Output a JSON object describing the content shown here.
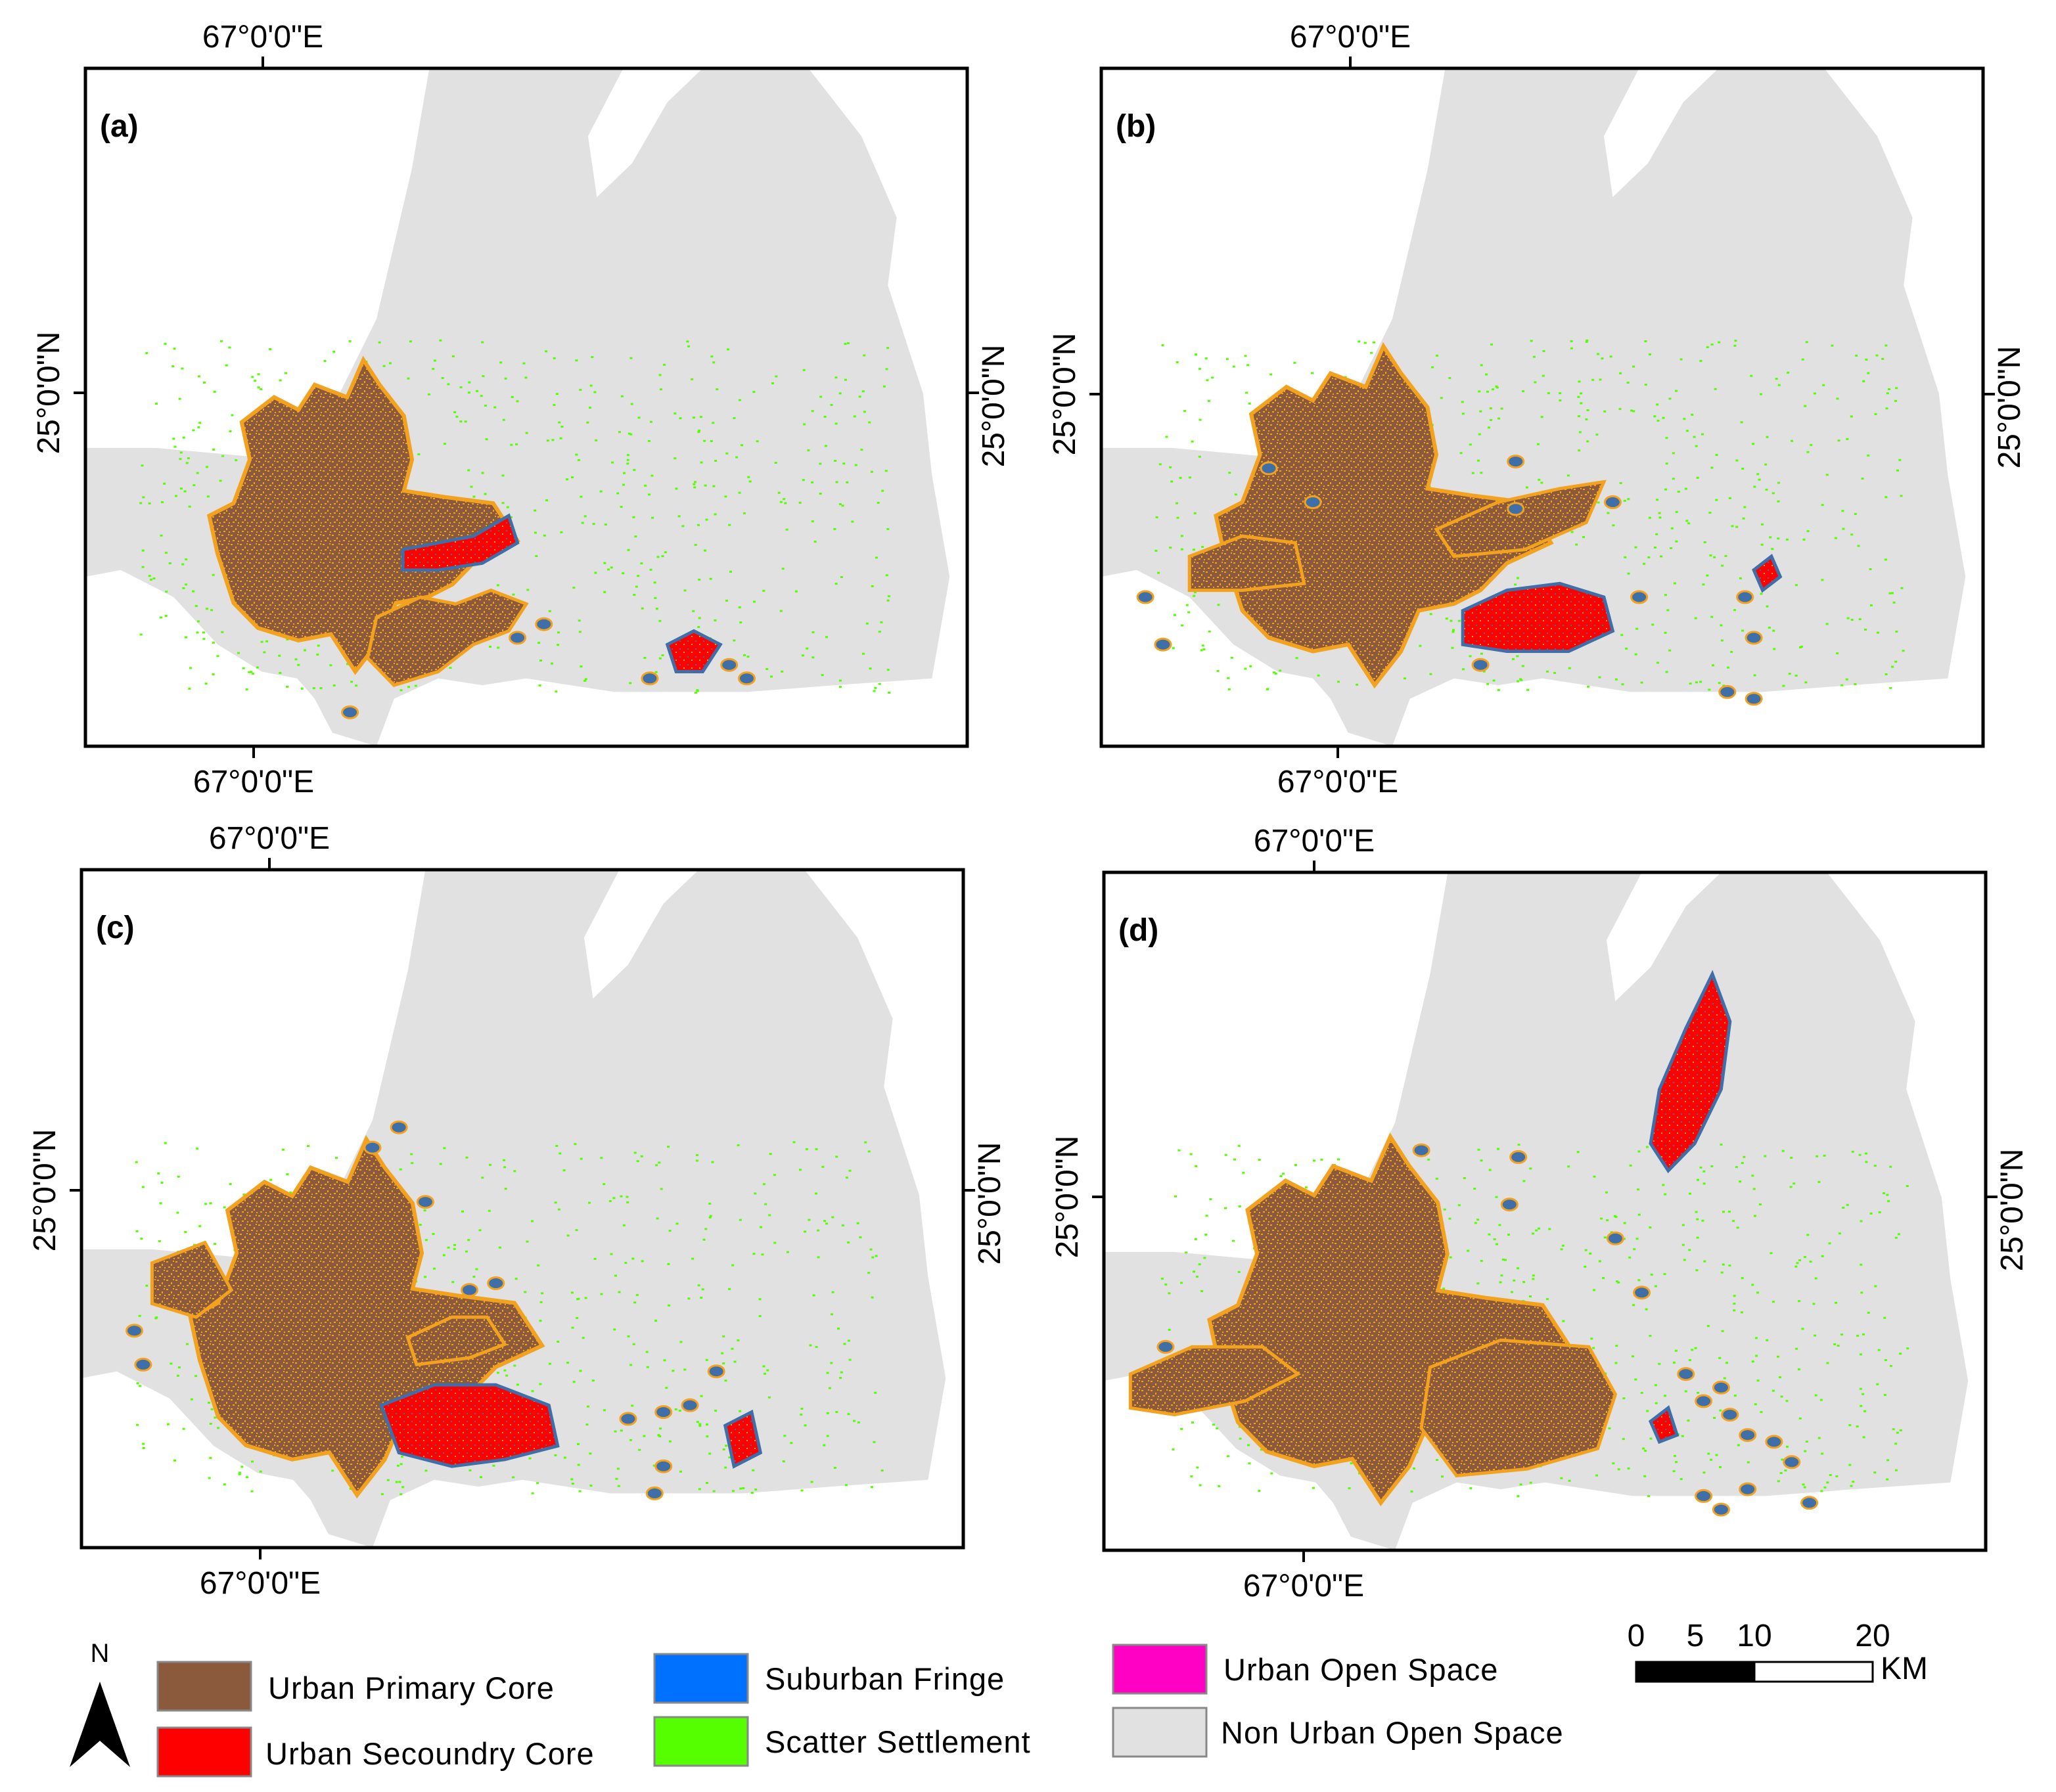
{
  "panels": [
    {
      "id": "a",
      "label": "(a)",
      "lon_top": "67°0'0\"E",
      "lon_bottom": "67°0'0\"E",
      "lat_left": "25°0'0\"N",
      "lat_right": "25°0'0\"N"
    },
    {
      "id": "b",
      "label": "(b)",
      "lon_top": "67°0'0\"E",
      "lon_bottom": "67°0'0\"E",
      "lat_left": "25°0'0\"N",
      "lat_right": "25°0'0\"N"
    },
    {
      "id": "c",
      "label": "(c)",
      "lon_top": "67°0'0\"E",
      "lon_bottom": "67°0'0\"E",
      "lat_left": "25°0'0\"N",
      "lat_right": "25°0'0\"N"
    },
    {
      "id": "d",
      "label": "(d)",
      "lon_top": "67°0'0\"E",
      "lon_bottom": "67°0'0\"E",
      "lat_left": "25°0'0\"N",
      "lat_right": "25°0'0\"N"
    }
  ],
  "north_arrow": {
    "label": "N"
  },
  "legend": {
    "items": [
      {
        "label": "Urban Primary Core",
        "color": "#8B5A3C"
      },
      {
        "label": "Urban Secoundry Core",
        "color": "#FF0000"
      },
      {
        "label": "Suburban Fringe",
        "color": "#0070FF"
      },
      {
        "label": "Scatter Settlement",
        "color": "#55FF00"
      },
      {
        "label": "Urban Open Space",
        "color": "#FF00C5"
      },
      {
        "label": "Non Urban Open Space",
        "color": "#E1E1E1"
      }
    ]
  },
  "scale_bar": {
    "ticks": [
      "0",
      "5",
      "10",
      "20"
    ],
    "unit": "KM"
  },
  "colors": {
    "land": "#E1E1E1",
    "fill_speckle": "#F2A21F",
    "fringe": "#3F6FA8",
    "scatter": "#55FF00"
  }
}
